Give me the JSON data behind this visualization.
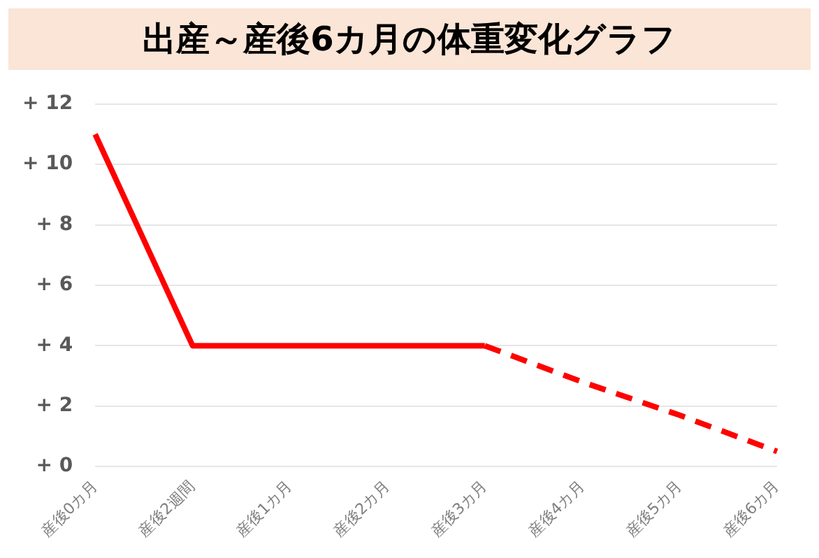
{
  "chart_data": {
    "type": "line",
    "title": "出産～産後6カ月の体重変化グラフ",
    "categories": [
      "産後0カ月",
      "産後2週間",
      "産後1カ月",
      "産後2カ月",
      "産後3カ月",
      "産後4カ月",
      "産後5カ月",
      "産後6カ月"
    ],
    "series": [
      {
        "color": "#ff0000",
        "line_style": "solid",
        "values": [
          11,
          4,
          4,
          4,
          4,
          null,
          null,
          null
        ]
      },
      {
        "color": "#ff0000",
        "line_style": "dashed",
        "values": [
          null,
          null,
          null,
          null,
          4,
          2.8,
          1.7,
          0.5
        ]
      }
    ],
    "ylim": [
      0,
      12
    ],
    "yticks": [
      {
        "value": 0,
        "label": "+ 0"
      },
      {
        "value": 2,
        "label": "+ 2"
      },
      {
        "value": 4,
        "label": "+ 4"
      },
      {
        "value": 6,
        "label": "+ 6"
      },
      {
        "value": 8,
        "label": "+ 8"
      },
      {
        "value": 10,
        "label": "+ 10"
      },
      {
        "value": 12,
        "label": "+ 12"
      }
    ],
    "grid": "y",
    "legend": false,
    "marker": "none"
  }
}
